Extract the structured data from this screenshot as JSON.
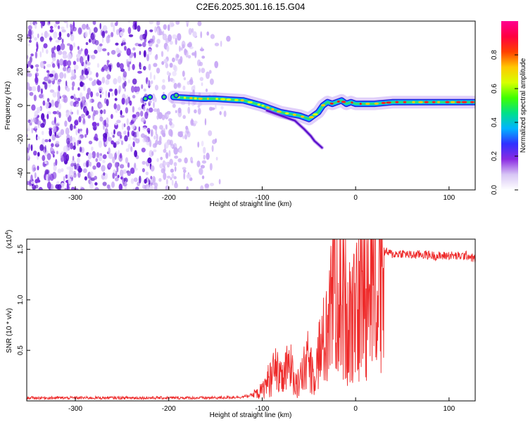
{
  "title": "C2E6.2025.301.16.15.G04",
  "chart_data": [
    {
      "type": "heatmap",
      "title": "C2E6.2025.301.16.15.G04",
      "xlabel": "Height of straight line (km)",
      "ylabel": "Frequency (Hz)",
      "xlim": [
        -352,
        128
      ],
      "ylim": [
        -50,
        50
      ],
      "xticks": [
        -300,
        -200,
        -100,
        0,
        100
      ],
      "xtick_labels": [
        "-300",
        "-200",
        "-100",
        "0",
        "100"
      ],
      "yticks": [
        -40,
        -20,
        0,
        20,
        40
      ],
      "ytick_labels": [
        "-40",
        "-20",
        "0",
        "20",
        "40"
      ],
      "colorbar": {
        "label": "Normalized spectral amplitude",
        "range": [
          0,
          1
        ],
        "ticks": [
          0.0,
          0.2,
          0.4,
          0.6,
          0.8
        ],
        "tick_labels": [
          "0.0",
          "0.2",
          "0.4",
          "0.6",
          "0.8"
        ],
        "colors": [
          "#ffffff",
          "#d8c6f5",
          "#8a2be2",
          "#3030ff",
          "#00b4ff",
          "#00e08a",
          "#40ff00",
          "#d8ff00",
          "#ffc800",
          "#ff4000",
          "#ff0040",
          "#ff0090"
        ]
      },
      "noise_region_x": [
        -352,
        -135
      ],
      "signal_track": {
        "x": [
          -195,
          -180,
          -165,
          -150,
          -135,
          -120,
          -110,
          -100,
          -90,
          -80,
          -70,
          -60,
          -50,
          -45,
          -40,
          -35,
          -30,
          -25,
          -20,
          -15,
          -10,
          -5,
          0,
          20,
          40,
          60,
          80,
          90,
          100,
          110,
          128
        ],
        "frequency_hz": [
          5,
          4.5,
          4,
          4,
          3.5,
          3,
          1.5,
          0,
          -2,
          -4,
          -5,
          -6,
          -8,
          -6,
          -4,
          0,
          2,
          1,
          2,
          3,
          1,
          2,
          1,
          1,
          2,
          2,
          2,
          2,
          2,
          2,
          2
        ]
      },
      "secondary_track": {
        "x": [
          -95,
          -85,
          -75,
          -65,
          -55,
          -48,
          -44,
          -40,
          -36
        ],
        "frequency_hz": [
          -3,
          -5,
          -7,
          -9,
          -14,
          -18,
          -21,
          -23,
          -25
        ]
      }
    },
    {
      "type": "line",
      "xlabel": "Height of straight line (km)",
      "ylabel": "SNR (10 * v/v)",
      "y_multiplier_label": "(x10",
      "y_multiplier_exp": "4",
      "xlim": [
        -352,
        128
      ],
      "ylim": [
        0,
        16000
      ],
      "xticks": [
        -300,
        -200,
        -100,
        0,
        100
      ],
      "xtick_labels": [
        "-300",
        "-200",
        "-100",
        "0",
        "100"
      ],
      "yticks": [
        5000,
        10000,
        15000
      ],
      "ytick_labels": [
        "0.5",
        "1.0",
        "1.5"
      ],
      "series": [
        {
          "name": "SNR",
          "color": "#ee2a2a",
          "x": [
            -352,
            -300,
            -250,
            -200,
            -150,
            -120,
            -110,
            -100,
            -95,
            -90,
            -85,
            -80,
            -75,
            -70,
            -65,
            -60,
            -55,
            -50,
            -45,
            -40,
            -35,
            -30,
            -27,
            -25,
            -23,
            -20,
            -15,
            -10,
            -5,
            0,
            5,
            10,
            15,
            20,
            25,
            30,
            40,
            50,
            60,
            70,
            80,
            90,
            100,
            110,
            120,
            128
          ],
          "y": [
            300,
            300,
            300,
            300,
            300,
            400,
            600,
            1000,
            1800,
            2500,
            3000,
            2000,
            2800,
            3500,
            2000,
            1800,
            3000,
            4000,
            2500,
            4500,
            5500,
            7000,
            9500,
            12500,
            15000,
            13000,
            9500,
            10000,
            8000,
            8000,
            10000,
            11500,
            12000,
            13000,
            14000,
            14800,
            14500,
            14600,
            14400,
            14500,
            14400,
            14300,
            14400,
            14300,
            14400,
            14000
          ]
        }
      ]
    }
  ]
}
